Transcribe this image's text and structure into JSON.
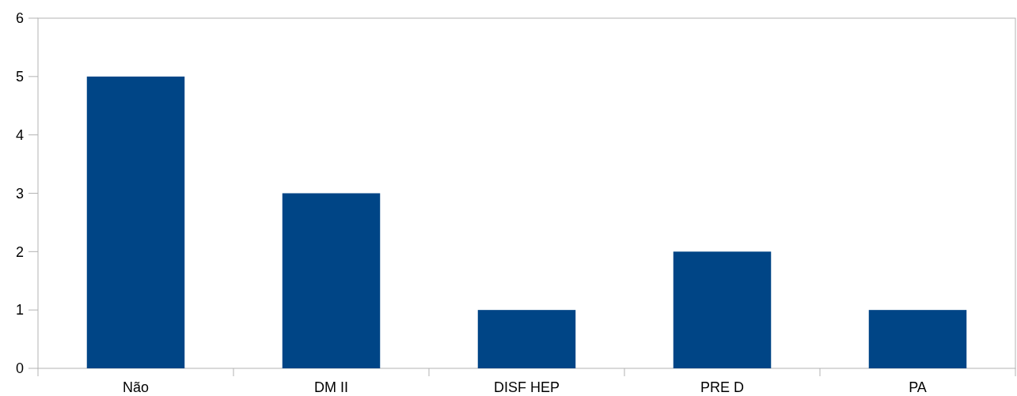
{
  "chart_data": {
    "type": "bar",
    "categories": [
      "Não",
      "DM II",
      "DISF HEP",
      "PRE D",
      "PA"
    ],
    "values": [
      5,
      3,
      1,
      2,
      1
    ],
    "color": "#004586",
    "ylim": [
      0,
      6
    ],
    "yticks": [
      0,
      1,
      2,
      3,
      4,
      5,
      6
    ],
    "grid": false
  }
}
